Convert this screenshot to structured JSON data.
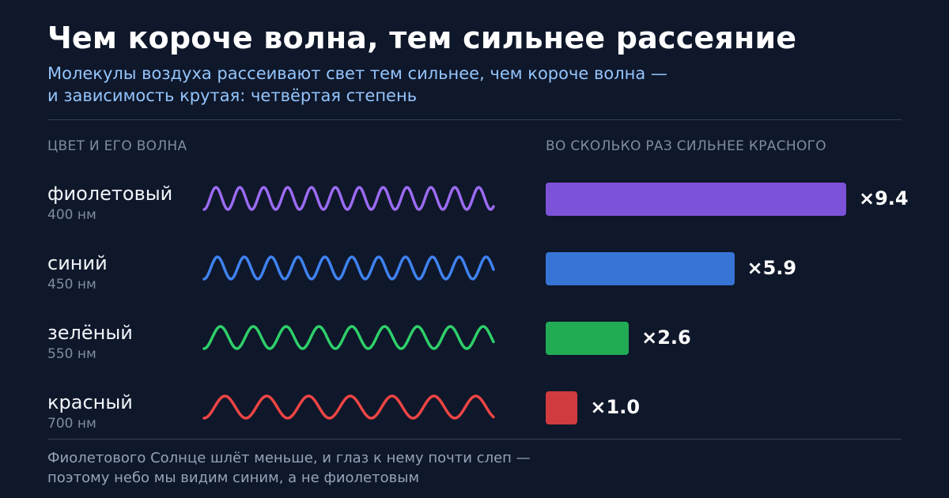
{
  "title": "Чем короче волна, тем сильнее рассеяние",
  "subtitle": {
    "line1": "Молекулы воздуха рассеивают свет тем сильнее, чем короче волна —",
    "line2": "и зависимость крутая: четвёртая степень"
  },
  "columns": {
    "left": "ЦВЕТ И ЕГО ВОЛНА",
    "right": "ВО СКОЛЬКО РАЗ СИЛЬНЕЕ КРАСНОГО"
  },
  "chart_data": {
    "type": "bar",
    "orientation": "horizontal",
    "categories": [
      "фиолетовый",
      "синий",
      "зелёный",
      "красный"
    ],
    "wavelength_labels": [
      "400 нм",
      "450 нм",
      "550 нм",
      "700 нм"
    ],
    "wavelengths_nm": [
      400,
      450,
      550,
      700
    ],
    "values": [
      9.4,
      5.9,
      2.6,
      1.0
    ],
    "value_labels": [
      "×9.4",
      "×5.9",
      "×2.6",
      "×1.0"
    ],
    "colors": [
      "#7c53d8",
      "#3674d6",
      "#22ab55",
      "#cf3b3f"
    ],
    "wave_colors": [
      "#9b6bf2",
      "#3f82f0",
      "#2fcf6a",
      "#ee4545"
    ],
    "xlim": [
      0,
      9.4
    ],
    "grid": false,
    "legend": "none"
  },
  "footer": {
    "line1": "Фиолетового Солнце шлёт меньше, и глаз к нему почти слеп —",
    "line2": "поэтому небо мы видим синим, а не фиолетовым"
  }
}
